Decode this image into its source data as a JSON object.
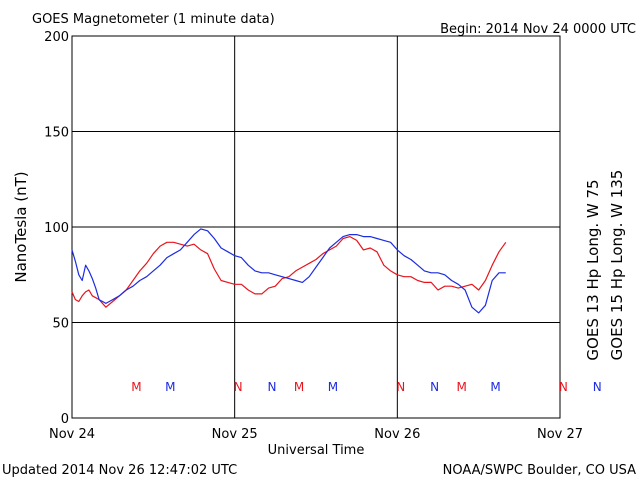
{
  "header": {
    "title": "GOES Magnetometer (1 minute data)",
    "begin": "Begin:  2014 Nov 24 0000 UTC"
  },
  "footer": {
    "updated": "Updated 2014 Nov 26 12:47:02 UTC",
    "credit": "NOAA/SWPC Boulder, CO USA"
  },
  "colors": {
    "goes13": "#e8141c",
    "goes15": "#1c2ce0",
    "axis": "#000000"
  },
  "chart_data": {
    "type": "line",
    "xlabel": "Universal Time",
    "ylabel": "NanoTesla (nT)",
    "xlim": [
      0,
      72
    ],
    "ylim": [
      0,
      200
    ],
    "x_unit": "hours since 2014 Nov 24 0000 UTC",
    "xticks": [
      {
        "value": 0,
        "label": "Nov 24"
      },
      {
        "value": 24,
        "label": "Nov 25"
      },
      {
        "value": 48,
        "label": "Nov 26"
      },
      {
        "value": 72,
        "label": "Nov 27"
      }
    ],
    "yticks": [
      0,
      50,
      100,
      150,
      200
    ],
    "grid": true,
    "series": [
      {
        "name": "GOES 13 Hp  Long. W 75",
        "color": "#e8141c",
        "x": [
          0,
          0.5,
          1,
          1.5,
          2,
          2.5,
          3,
          3.5,
          4,
          5,
          6,
          7,
          8,
          9,
          10,
          11,
          12,
          13,
          14,
          15,
          16,
          17,
          18,
          19,
          20,
          21,
          22,
          23,
          24,
          25,
          26,
          27,
          28,
          29,
          30,
          31,
          32,
          33,
          34,
          35,
          36,
          37,
          38,
          39,
          40,
          41,
          42,
          43,
          44,
          45,
          46,
          47,
          48,
          49,
          50,
          51,
          52,
          53,
          54,
          55,
          56,
          57,
          58,
          59,
          60,
          61,
          62,
          63,
          64
        ],
        "y": [
          66,
          62,
          61,
          64,
          66,
          67,
          64,
          63,
          62,
          58,
          61,
          64,
          67,
          72,
          77,
          81,
          86,
          90,
          92,
          92,
          91,
          90,
          91,
          88,
          86,
          78,
          72,
          71,
          70,
          70,
          67,
          65,
          65,
          68,
          69,
          73,
          74,
          77,
          79,
          81,
          83,
          86,
          88,
          90,
          94,
          95,
          93,
          88,
          89,
          87,
          80,
          77,
          75,
          74,
          74,
          72,
          71,
          71,
          67,
          69,
          69,
          68,
          69,
          70,
          67,
          72,
          80,
          87,
          92
        ]
      },
      {
        "name": "GOES 15 Hp  Long. W 135",
        "color": "#1c2ce0",
        "x": [
          0,
          0.5,
          1,
          1.5,
          2,
          2.5,
          3,
          3.5,
          4,
          5,
          6,
          7,
          8,
          9,
          10,
          11,
          12,
          13,
          14,
          15,
          16,
          17,
          18,
          19,
          20,
          21,
          22,
          23,
          24,
          25,
          26,
          27,
          28,
          29,
          30,
          31,
          32,
          33,
          34,
          35,
          36,
          37,
          38,
          39,
          40,
          41,
          42,
          43,
          44,
          45,
          46,
          47,
          48,
          49,
          50,
          51,
          52,
          53,
          54,
          55,
          56,
          57,
          58,
          59,
          60,
          61,
          62,
          63,
          64
        ],
        "y": [
          88,
          82,
          75,
          72,
          80,
          77,
          73,
          68,
          62,
          60,
          62,
          64,
          67,
          69,
          72,
          74,
          77,
          80,
          84,
          86,
          88,
          92,
          96,
          99,
          98,
          94,
          89,
          87,
          85,
          84,
          80,
          77,
          76,
          76,
          75,
          74,
          73,
          72,
          71,
          74,
          79,
          84,
          89,
          92,
          95,
          96,
          96,
          95,
          95,
          94,
          93,
          92,
          88,
          85,
          83,
          80,
          77,
          76,
          76,
          75,
          72,
          70,
          67,
          58,
          55,
          59,
          72,
          76,
          76
        ]
      }
    ],
    "annotations": [
      {
        "label": "M",
        "x": 9.5,
        "color": "#e8141c"
      },
      {
        "label": "M",
        "x": 14.5,
        "color": "#1c2ce0"
      },
      {
        "label": "N",
        "x": 24.5,
        "color": "#e8141c"
      },
      {
        "label": "N",
        "x": 29.5,
        "color": "#1c2ce0"
      },
      {
        "label": "M",
        "x": 33.5,
        "color": "#e8141c"
      },
      {
        "label": "M",
        "x": 38.5,
        "color": "#1c2ce0"
      },
      {
        "label": "N",
        "x": 48.5,
        "color": "#e8141c"
      },
      {
        "label": "N",
        "x": 53.5,
        "color": "#1c2ce0"
      },
      {
        "label": "M",
        "x": 57.5,
        "color": "#e8141c"
      },
      {
        "label": "M",
        "x": 62.5,
        "color": "#1c2ce0"
      },
      {
        "label": "N",
        "x": 72.5,
        "color": "#e8141c"
      },
      {
        "label": "N",
        "x": 77.5,
        "color": "#1c2ce0"
      }
    ]
  }
}
